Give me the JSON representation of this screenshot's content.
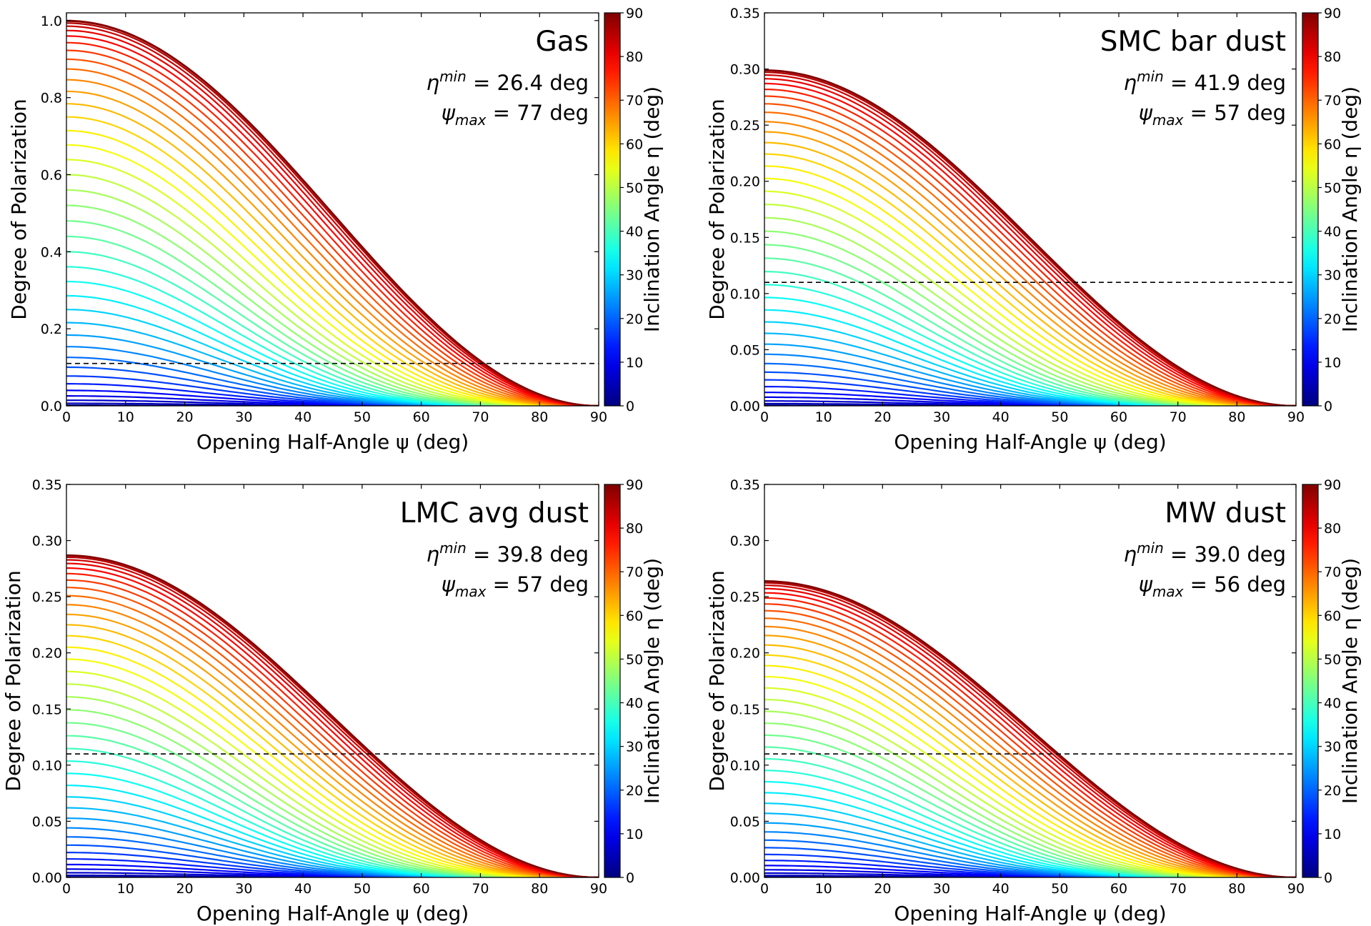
{
  "chart_data": [
    {
      "type": "line",
      "title": "Gas",
      "annotation_eta_value": "26.4",
      "annotation_psi_value": "77",
      "annotation_unit": "deg",
      "xlabel": "Opening Half-Angle ψ (deg)",
      "ylabel": "Degree of Polarization",
      "xlim": [
        0,
        90
      ],
      "ylim": [
        0,
        1.02
      ],
      "xticks": [
        0,
        10,
        20,
        30,
        40,
        50,
        60,
        70,
        80,
        90
      ],
      "yticks": [
        "0.0",
        "0.2",
        "0.4",
        "0.6",
        "0.8",
        "1.0"
      ],
      "p_max": 1.0,
      "threshold": 0.11,
      "series_count": 40,
      "series_description": "one curve per inclination angle η from 0 to 90 deg, colored by η (jet colormap)",
      "colorbar": {
        "label": "Inclination Angle η (deg)",
        "range": [
          0,
          90
        ],
        "ticks": [
          0,
          10,
          20,
          30,
          40,
          50,
          60,
          70,
          80,
          90
        ]
      }
    },
    {
      "type": "line",
      "title": "SMC bar dust",
      "annotation_eta_value": "41.9",
      "annotation_psi_value": "57",
      "annotation_unit": "deg",
      "xlabel": "Opening Half-Angle ψ (deg)",
      "ylabel": "Degree of Polarization",
      "xlim": [
        0,
        90
      ],
      "ylim": [
        0,
        0.35
      ],
      "xticks": [
        0,
        10,
        20,
        30,
        40,
        50,
        60,
        70,
        80,
        90
      ],
      "yticks": [
        "0.00",
        "0.05",
        "0.10",
        "0.15",
        "0.20",
        "0.25",
        "0.30",
        "0.35"
      ],
      "p_max": 0.299,
      "threshold": 0.11,
      "series_count": 40,
      "series_description": "one curve per inclination angle η from 0 to 90 deg, colored by η (jet colormap)",
      "colorbar": {
        "label": "Inclination Angle η (deg)",
        "range": [
          0,
          90
        ],
        "ticks": [
          0,
          10,
          20,
          30,
          40,
          50,
          60,
          70,
          80,
          90
        ]
      }
    },
    {
      "type": "line",
      "title": "LMC avg dust",
      "annotation_eta_value": "39.8",
      "annotation_psi_value": "57",
      "annotation_unit": "deg",
      "xlabel": "Opening Half-Angle ψ (deg)",
      "ylabel": "Degree of Polarization",
      "xlim": [
        0,
        90
      ],
      "ylim": [
        0,
        0.35
      ],
      "xticks": [
        0,
        10,
        20,
        30,
        40,
        50,
        60,
        70,
        80,
        90
      ],
      "yticks": [
        "0.00",
        "0.05",
        "0.10",
        "0.15",
        "0.20",
        "0.25",
        "0.30",
        "0.35"
      ],
      "p_max": 0.287,
      "threshold": 0.11,
      "series_count": 40,
      "series_description": "one curve per inclination angle η from 0 to 90 deg, colored by η (jet colormap)",
      "colorbar": {
        "label": "Inclination Angle η (deg)",
        "range": [
          0,
          90
        ],
        "ticks": [
          0,
          10,
          20,
          30,
          40,
          50,
          60,
          70,
          80,
          90
        ]
      }
    },
    {
      "type": "line",
      "title": "MW dust",
      "annotation_eta_value": "39.0",
      "annotation_psi_value": "56",
      "annotation_unit": "deg",
      "xlabel": "Opening Half-Angle ψ (deg)",
      "ylabel": "Degree of Polarization",
      "xlim": [
        0,
        90
      ],
      "ylim": [
        0,
        0.35
      ],
      "xticks": [
        0,
        10,
        20,
        30,
        40,
        50,
        60,
        70,
        80,
        90
      ],
      "yticks": [
        "0.00",
        "0.05",
        "0.10",
        "0.15",
        "0.20",
        "0.25",
        "0.30",
        "0.35"
      ],
      "p_max": 0.264,
      "threshold": 0.11,
      "series_count": 40,
      "series_description": "one curve per inclination angle η from 0 to 90 deg, colored by η (jet colormap)",
      "colorbar": {
        "label": "Inclination Angle η (deg)",
        "range": [
          0,
          90
        ],
        "ticks": [
          0,
          10,
          20,
          30,
          40,
          50,
          60,
          70,
          80,
          90
        ]
      }
    }
  ]
}
